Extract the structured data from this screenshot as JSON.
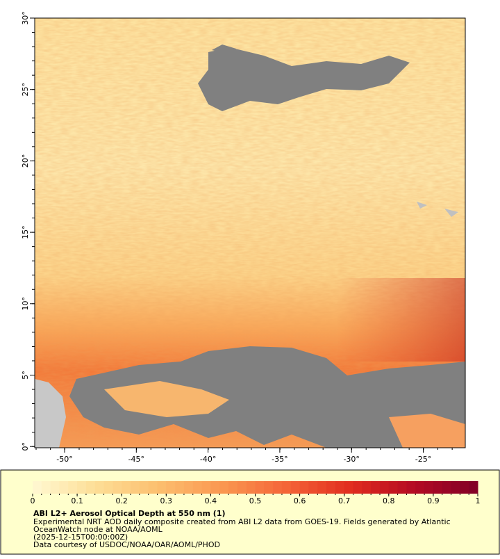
{
  "map": {
    "xticks": [
      "-50°",
      "-45°",
      "-40°",
      "-35°",
      "-30°",
      "-25°"
    ],
    "yticks": [
      "30°",
      "25°",
      "20°",
      "15°",
      "10°",
      "5°",
      "0°"
    ]
  },
  "legend": {
    "ticks": [
      0,
      0.1,
      0.2,
      0.3,
      0.4,
      0.5,
      0.6,
      0.7,
      0.8,
      0.9,
      1
    ],
    "title": "ABI L2+ Aerosol Optical Depth at 550 nm (1)",
    "lines": [
      "Experimental NRT AOD daily composite created from ABI L2 data from GOES-19. Fields generated by Atlantic",
      "OceanWatch node at NOAA/AOML",
      "(2025-12-15T00:00:00Z)",
      "Data courtesy of USDOC/NOAA/OAR/AOML/PHOD"
    ]
  }
}
